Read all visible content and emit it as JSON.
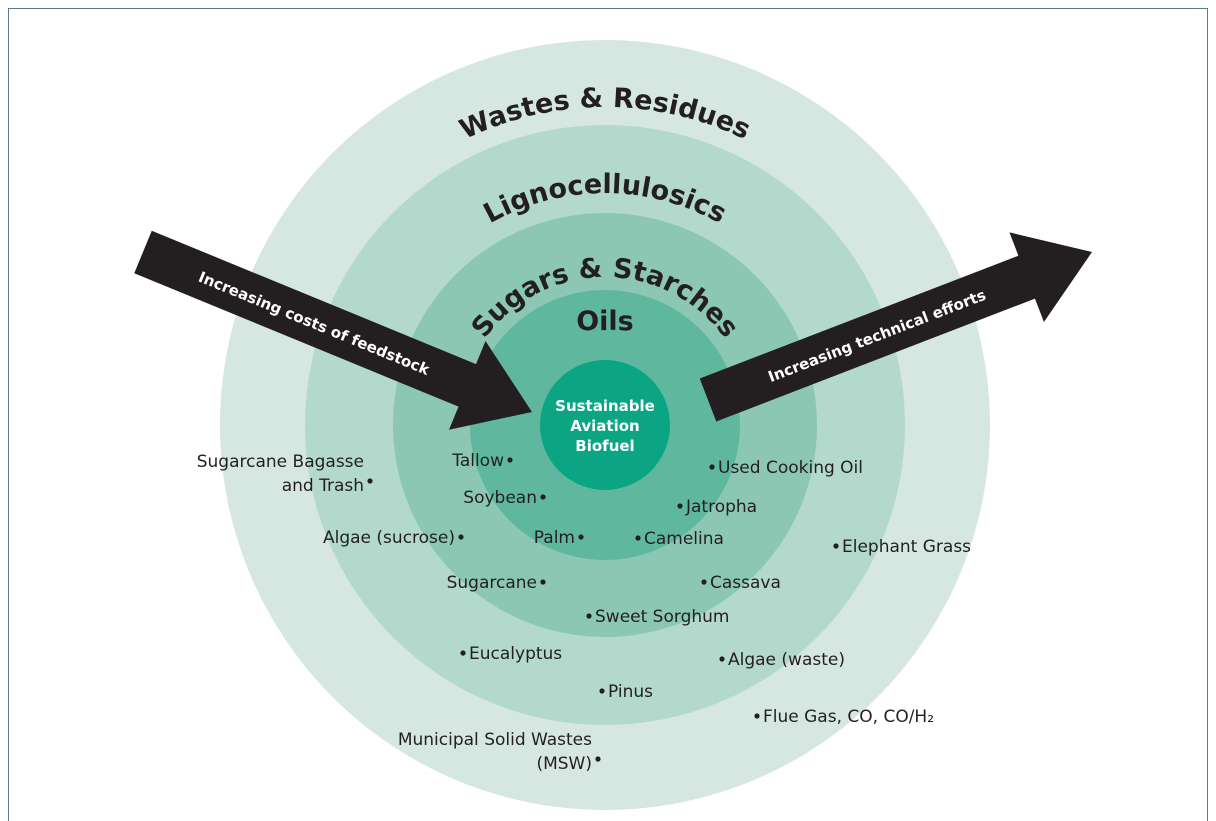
{
  "rings": [
    {
      "label": "Wastes & Residues"
    },
    {
      "label": "Lignocellulosics"
    },
    {
      "label": "Sugars & Starches"
    },
    {
      "label": "Oils"
    }
  ],
  "center": {
    "lines": [
      "Sustainable",
      "Aviation",
      "Biofuel"
    ]
  },
  "arrows": [
    {
      "label": "Increasing costs of feedstock"
    },
    {
      "label": "Increasing technical efforts"
    }
  ],
  "feedstocks": [
    {
      "lines": [
        "Sugarcane Bagasse",
        "and Trash"
      ]
    },
    {
      "lines": [
        "Tallow"
      ]
    },
    {
      "lines": [
        "Soybean"
      ]
    },
    {
      "lines": [
        "Algae (sucrose)"
      ]
    },
    {
      "lines": [
        "Palm"
      ]
    },
    {
      "lines": [
        "Sugarcane"
      ]
    },
    {
      "lines": [
        "Municipal Solid Wastes",
        "(MSW)"
      ]
    },
    {
      "lines": [
        "Used Cooking Oil"
      ]
    },
    {
      "lines": [
        "Jatropha"
      ]
    },
    {
      "lines": [
        "Camelina"
      ]
    },
    {
      "lines": [
        "Elephant Grass"
      ]
    },
    {
      "lines": [
        "Cassava"
      ]
    },
    {
      "lines": [
        "Sweet Sorghum"
      ]
    },
    {
      "lines": [
        "Eucalyptus"
      ]
    },
    {
      "lines": [
        "Algae (waste)"
      ]
    },
    {
      "lines": [
        "Pinus"
      ]
    },
    {
      "lines": [
        "Flue Gas, CO, CO/H₂"
      ]
    }
  ]
}
